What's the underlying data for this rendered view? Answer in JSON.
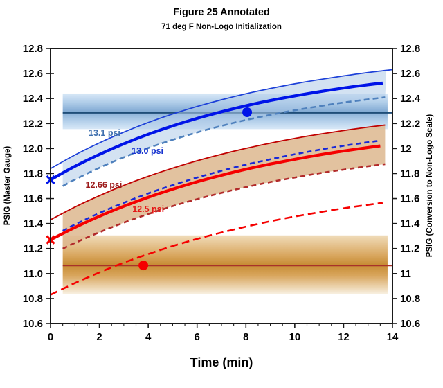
{
  "title": "Figure 25 Annotated",
  "subtitle": "71 deg F Non-Logo Initialization",
  "chart_data": {
    "type": "line",
    "xlabel": "Time (min)",
    "axes": {
      "x": {
        "label": "Time (min)",
        "range": [
          0,
          14
        ],
        "ticks": [
          0,
          2,
          4,
          6,
          8,
          10,
          12,
          14
        ],
        "minor_step": 0.5
      },
      "y_left": {
        "label": "PSIG (Master Gauge)",
        "range": [
          10.6,
          12.8
        ],
        "tick_values": [
          12.8,
          12.6,
          12.4,
          12.2,
          12.0,
          11.8,
          11.6,
          11.4,
          11.2,
          11.0,
          10.8,
          10.6
        ],
        "tick_labels": [
          "12.8",
          "12.6",
          "12.4",
          "12.2",
          "12.0",
          "11.8",
          "11.6",
          "11.4",
          "11.2",
          "11.0",
          "10.8",
          "10.6"
        ]
      },
      "y_right": {
        "label": "PSIG (Conversion to Non-Logo Scale)",
        "tick_labels": [
          "12.8",
          "12.6",
          "12.4",
          "12.2",
          "12",
          "11.8",
          "11.6",
          "11.4",
          "11.2",
          "11",
          "10.8",
          "10.6"
        ]
      }
    },
    "bands": [
      {
        "name": "blue-target-band",
        "t1": 0.5,
        "t2": 13.8,
        "v1": 12.155,
        "v2": 12.44,
        "gradient": "bandBlue"
      },
      {
        "name": "orange-target-band",
        "t1": 0.5,
        "t2": 13.8,
        "v1": 10.835,
        "v2": 11.305,
        "gradient": "bandOrange"
      }
    ],
    "ref_lines": [
      {
        "name": "blue-target-line",
        "v": 12.285,
        "t1": 0.5,
        "t2": 14,
        "color": "#1f4e79",
        "width": 2
      },
      {
        "name": "red-target-line",
        "v": 11.065,
        "t1": 0.5,
        "t2": 14,
        "color": "#a8322a",
        "width": 2.2
      }
    ],
    "series": [
      {
        "name": "blue-thin-upper",
        "color": "#1c40d8",
        "width": 1.7,
        "dash": null,
        "t": [
          0,
          1,
          2,
          3,
          4,
          5,
          6,
          7,
          8,
          9,
          10,
          11,
          12,
          13,
          14
        ],
        "y": [
          11.84,
          11.949,
          12.045,
          12.131,
          12.208,
          12.276,
          12.336,
          12.39,
          12.438,
          12.48,
          12.518,
          12.551,
          12.581,
          12.608,
          12.631
        ]
      },
      {
        "name": "blue-thick-gauge",
        "color": "#0014e8",
        "width": 4.2,
        "dash": null,
        "t": [
          0,
          1,
          2,
          3,
          4,
          5,
          6,
          7,
          8,
          9,
          10,
          11,
          12,
          13,
          13.6
        ],
        "y": [
          11.75,
          11.858,
          11.953,
          12.038,
          12.114,
          12.181,
          12.241,
          12.294,
          12.342,
          12.384,
          12.421,
          12.454,
          12.484,
          12.51,
          12.524
        ]
      },
      {
        "name": "blue-dashed-lower",
        "color": "#4f81bd",
        "width": 2.6,
        "dash": "8 5",
        "t": [
          0.5,
          1,
          2,
          3,
          4,
          5,
          6,
          7,
          8,
          9,
          10,
          11,
          12,
          13,
          13.7
        ],
        "y": [
          11.7,
          11.752,
          11.846,
          11.93,
          12.004,
          12.07,
          12.129,
          12.181,
          12.228,
          12.269,
          12.306,
          12.338,
          12.368,
          12.393,
          12.41
        ]
      },
      {
        "name": "red-thin-upper",
        "color": "#c00000",
        "width": 1.8,
        "dash": null,
        "t": [
          0,
          1,
          2,
          3,
          4,
          5,
          6,
          7,
          8,
          9,
          10,
          11,
          12,
          13,
          13.7
        ],
        "y": [
          11.43,
          11.532,
          11.623,
          11.705,
          11.778,
          11.843,
          11.902,
          11.954,
          12.001,
          12.043,
          12.081,
          12.114,
          12.144,
          12.171,
          12.188
        ]
      },
      {
        "name": "red-thick-gauge",
        "color": "#f50000",
        "width": 4.2,
        "dash": null,
        "t": [
          0,
          1,
          2,
          3,
          4,
          5,
          6,
          7,
          8,
          9,
          10,
          11,
          12,
          13,
          13.5
        ],
        "y": [
          11.27,
          11.369,
          11.458,
          11.538,
          11.61,
          11.675,
          11.734,
          11.786,
          11.834,
          11.876,
          11.914,
          11.949,
          11.98,
          12.008,
          12.021
        ]
      },
      {
        "name": "blue-dashed-tracking-red",
        "color": "#1828d8",
        "width": 2.6,
        "dash": "7 5",
        "t": [
          0.5,
          1,
          2,
          3,
          4,
          5,
          6,
          7,
          8,
          9,
          10,
          11,
          12,
          13,
          13.5
        ],
        "y": [
          11.342,
          11.392,
          11.484,
          11.566,
          11.641,
          11.707,
          11.768,
          11.822,
          11.871,
          11.914,
          11.954,
          11.99,
          12.022,
          12.05,
          12.064
        ]
      },
      {
        "name": "red-dashed-dark-lower",
        "color": "#b22a2a",
        "width": 2.6,
        "dash": "7 5",
        "t": [
          0.5,
          1,
          2,
          3,
          4,
          5,
          6,
          7,
          8,
          9,
          10,
          11,
          12,
          13,
          13.7
        ],
        "y": [
          11.199,
          11.245,
          11.33,
          11.407,
          11.476,
          11.539,
          11.595,
          11.645,
          11.691,
          11.732,
          11.768,
          11.802,
          11.831,
          11.858,
          11.875
        ]
      },
      {
        "name": "red-dashed-light-low",
        "color": "#f50000",
        "width": 2.6,
        "dash": "11 6",
        "t": [
          0,
          1,
          2,
          3,
          4,
          5,
          6,
          7,
          8,
          9,
          10,
          11,
          12,
          13,
          13.6
        ],
        "y": [
          10.83,
          10.924,
          11.009,
          11.087,
          11.156,
          11.22,
          11.277,
          11.328,
          11.375,
          11.418,
          11.456,
          11.49,
          11.522,
          11.55,
          11.566
        ]
      }
    ],
    "fills": [
      {
        "name": "blue-uncertainty-fill",
        "top": "blue-thin-upper",
        "bottom": "blue-dashed-lower",
        "color": "#aecbe8",
        "opacity": 0.55,
        "t1": 0.5,
        "t2": 13.75
      },
      {
        "name": "tan-uncertainty-fill",
        "top": "red-thin-upper",
        "bottom": "red-dashed-dark-lower",
        "color": "#ddb78e",
        "opacity": 0.85,
        "t1": 0.5,
        "t2": 13.75
      }
    ],
    "start_markers": [
      {
        "name": "blue-start-x",
        "t": 0,
        "v": 11.75,
        "color": "#0014e8"
      },
      {
        "name": "red-start-x",
        "t": 0,
        "v": 11.27,
        "color": "#f50000"
      }
    ],
    "points": [
      {
        "name": "blue-data-point",
        "t": 8.05,
        "v": 12.29,
        "r": 7,
        "color": "#0014e8"
      },
      {
        "name": "red-data-point",
        "t": 3.8,
        "v": 11.065,
        "r": 7,
        "color": "#f50000"
      }
    ],
    "annotations": [
      {
        "name": "label-13-1-psi",
        "text": "13.1 psi",
        "t": 2.21,
        "v": 12.124,
        "color": "#3e6fae"
      },
      {
        "name": "label-13-0-psi",
        "text": "13.0 psi",
        "t": 3.97,
        "v": 11.98,
        "color": "#1733cf"
      },
      {
        "name": "label-12-66-psi",
        "text": "12.66 psi",
        "t": 2.18,
        "v": 11.708,
        "color": "#9c1a1a"
      },
      {
        "name": "label-12-5-psi",
        "text": "12.5 psi",
        "t": 4.0,
        "v": 11.514,
        "color": "#e51616"
      }
    ]
  }
}
